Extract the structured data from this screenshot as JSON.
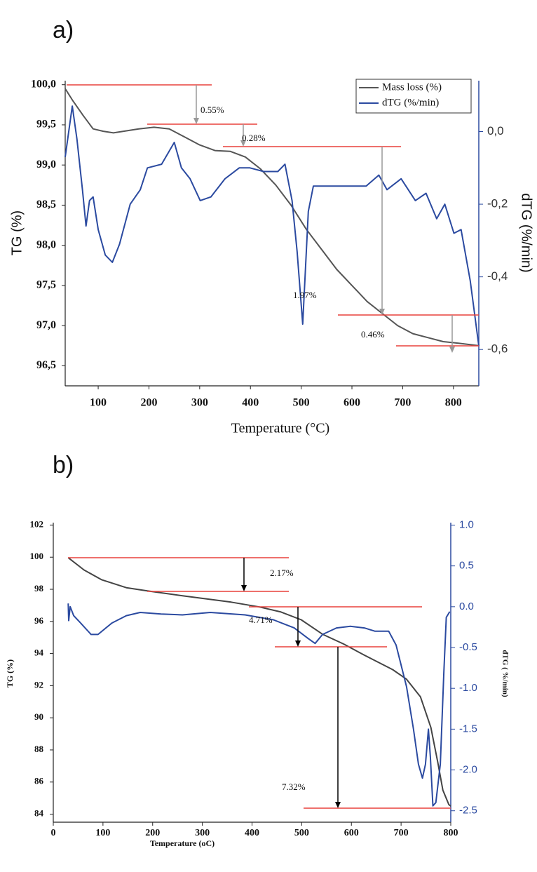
{
  "chart_data": [
    {
      "type": "line",
      "label": "a)",
      "x_label": "Temperature (°C)",
      "y_label": "TG (%)",
      "y2_label": "dTG (%/min)",
      "xlim": [
        35,
        850
      ],
      "xticks": [
        100,
        200,
        300,
        400,
        500,
        600,
        700,
        800
      ],
      "ylim": [
        96.25,
        100.05
      ],
      "yticks": [
        {
          "value": 96.5,
          "label": "96,5"
        },
        {
          "value": 97,
          "label": "97,0"
        },
        {
          "value": 97.5,
          "label": "97,5"
        },
        {
          "value": 98,
          "label": "98,0"
        },
        {
          "value": 98.5,
          "label": "98,5"
        },
        {
          "value": 99,
          "label": "99,0"
        },
        {
          "value": 99.5,
          "label": "99,5"
        },
        {
          "value": 100,
          "label": "100,0"
        }
      ],
      "y2lim": [
        -0.7,
        0.14
      ],
      "y2ticks": [
        {
          "value": -0.6,
          "label": "-0,6"
        },
        {
          "value": -0.4,
          "label": "-0,4"
        },
        {
          "value": -0.2,
          "label": "-0,2"
        },
        {
          "value": 0,
          "label": "0,0"
        }
      ],
      "legend": "upper right",
      "annotations": [
        "0.55%",
        "0.28%",
        "1.97%",
        "0.46%"
      ],
      "series": [
        {
          "name": "Mass loss (%)",
          "color": "#555555",
          "x": [
            35,
            50,
            70,
            90,
            110,
            130,
            150,
            180,
            210,
            240,
            270,
            300,
            330,
            360,
            390,
            420,
            450,
            480,
            510,
            540,
            570,
            600,
            630,
            660,
            690,
            720,
            750,
            780,
            810,
            850
          ],
          "values": [
            99.95,
            99.8,
            99.62,
            99.45,
            99.42,
            99.4,
            99.42,
            99.45,
            99.47,
            99.45,
            99.35,
            99.25,
            99.18,
            99.17,
            99.1,
            98.95,
            98.75,
            98.5,
            98.2,
            97.95,
            97.7,
            97.5,
            97.3,
            97.15,
            97.0,
            96.9,
            96.85,
            96.8,
            96.78,
            96.75
          ]
        },
        {
          "name": "dTG (%/min)",
          "color": "#2b4aa0",
          "axis": "y2",
          "x": [
            35,
            49,
            58,
            69,
            76,
            83,
            90,
            100,
            114,
            128,
            142,
            163,
            183,
            197,
            225,
            250,
            264,
            281,
            301,
            322,
            350,
            378,
            399,
            426,
            454,
            468,
            482,
            492,
            503,
            514,
            524,
            544,
            572,
            600,
            628,
            653,
            669,
            697,
            725,
            746,
            767,
            783,
            801,
            815,
            833,
            850
          ],
          "values": [
            -0.07,
            0.07,
            -0.02,
            -0.16,
            -0.26,
            -0.19,
            -0.18,
            -0.27,
            -0.34,
            -0.36,
            -0.31,
            -0.2,
            -0.16,
            -0.1,
            -0.09,
            -0.03,
            -0.1,
            -0.13,
            -0.19,
            -0.18,
            -0.13,
            -0.1,
            -0.1,
            -0.11,
            -0.11,
            -0.09,
            -0.19,
            -0.33,
            -0.53,
            -0.22,
            -0.15,
            -0.15,
            -0.15,
            -0.15,
            -0.15,
            -0.12,
            -0.16,
            -0.13,
            -0.19,
            -0.17,
            -0.24,
            -0.2,
            -0.28,
            -0.27,
            -0.41,
            -0.59
          ]
        }
      ]
    },
    {
      "type": "line",
      "label": "b)",
      "x_label": "Temperature (oC)",
      "y_label": "TG (%)",
      "y2_label": "dTG ( %/min)",
      "xlim": [
        0,
        800
      ],
      "xticks": [
        0,
        100,
        200,
        300,
        400,
        500,
        600,
        700,
        800
      ],
      "ylim": [
        83.5,
        102.15
      ],
      "yticks": [
        84,
        86,
        88,
        90,
        92,
        94,
        96,
        98,
        100,
        102
      ],
      "y2lim": [
        -2.64,
        1.03
      ],
      "y2ticks": [
        {
          "value": -2.5,
          "label": "-2.5"
        },
        {
          "value": -2,
          "label": "-2.0"
        },
        {
          "value": -1.5,
          "label": "-1.5"
        },
        {
          "value": -1,
          "label": "-1.0"
        },
        {
          "value": -0.5,
          "label": "-0.5"
        },
        {
          "value": 0,
          "label": "0.0"
        },
        {
          "value": 0.5,
          "label": "0.5"
        },
        {
          "value": 1,
          "label": "1.0"
        }
      ],
      "annotations": [
        "2.17%",
        "4.71%",
        "7.32%"
      ],
      "series": [
        {
          "color": "#444444",
          "x": [
            30,
            62,
            97,
            147,
            189,
            260,
            358,
            415,
            457,
            499,
            542,
            584,
            626,
            683,
            711,
            739,
            760,
            774,
            784,
            796,
            800
          ],
          "values": [
            99.97,
            99.2,
            98.6,
            98.1,
            97.9,
            97.6,
            97.2,
            96.9,
            96.6,
            96.1,
            95.2,
            94.6,
            93.9,
            93.0,
            92.4,
            91.3,
            89.4,
            87.2,
            85.5,
            84.6,
            84.5
          ]
        },
        {
          "color": "#2b4aa0",
          "axis": "y2",
          "x": [
            30,
            31,
            34,
            41,
            55,
            76,
            90,
            118,
            147,
            175,
            217,
            260,
            316,
            386,
            443,
            485,
            513,
            527,
            542,
            570,
            598,
            626,
            647,
            675,
            690,
            711,
            725,
            735,
            743,
            749,
            755,
            759,
            764,
            770,
            779,
            786,
            791,
            798
          ],
          "values": [
            0.04,
            -0.17,
            0,
            -0.11,
            -0.2,
            -0.34,
            -0.34,
            -0.2,
            -0.11,
            -0.07,
            -0.09,
            -0.1,
            -0.07,
            -0.1,
            -0.16,
            -0.26,
            -0.39,
            -0.45,
            -0.34,
            -0.26,
            -0.24,
            -0.26,
            -0.3,
            -0.3,
            -0.47,
            -0.98,
            -1.5,
            -1.93,
            -2.1,
            -1.93,
            -1.5,
            -1.84,
            -2.44,
            -2.4,
            -1.93,
            -0.81,
            -0.13,
            -0.06
          ]
        }
      ]
    }
  ]
}
